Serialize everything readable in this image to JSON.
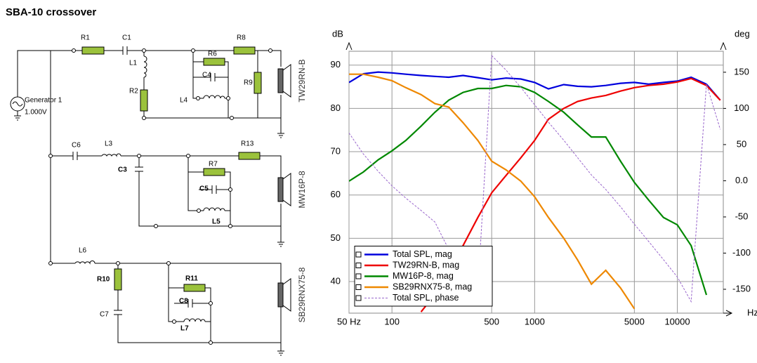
{
  "header": {
    "title": "SBA-10 crossover"
  },
  "circuit": {
    "generator": {
      "name": "Generator 1",
      "voltage": "1.000V"
    },
    "components": [
      "R1",
      "C1",
      "L1",
      "R2",
      "R6",
      "C4",
      "L4",
      "R8",
      "R9",
      "C6",
      "L3",
      "C3",
      "R7",
      "C5",
      "L5",
      "R13",
      "L6",
      "R10",
      "C7",
      "R11",
      "C8",
      "L7"
    ],
    "drivers": [
      "TW29RN-B",
      "MW16P-8",
      "SB29RNX75-8"
    ]
  },
  "chart_data": {
    "type": "line",
    "ylabel": "dB",
    "y2label": "deg",
    "xlabel": "Hz",
    "xscale": "log",
    "x": [
      50,
      63,
      80,
      100,
      125,
      160,
      200,
      250,
      315,
      400,
      500,
      630,
      800,
      1000,
      1250,
      1600,
      2000,
      2500,
      3150,
      4000,
      5000,
      6300,
      8000,
      10000,
      12500,
      16000,
      20000
    ],
    "xlim": [
      50,
      21000
    ],
    "xticks": [
      {
        "value": 50,
        "label": "50 Hz"
      },
      100,
      500,
      1000,
      5000,
      10000
    ],
    "ylim": [
      32.7,
      93.2
    ],
    "yticks": [
      40,
      50,
      60,
      70,
      80,
      90
    ],
    "y2lim": [
      -183,
      179
    ],
    "y2ticks": [
      150,
      100,
      50,
      {
        "value": 0,
        "label": "0.0"
      },
      -50,
      -100,
      -150
    ],
    "grid": true,
    "legend": "lower left",
    "series": [
      {
        "name": "Total SPL, mag",
        "color": "#0000dd",
        "values": [
          86,
          88,
          88.4,
          88.2,
          87.9,
          87.6,
          87.4,
          87.2,
          87.6,
          87.1,
          86.6,
          87,
          86.8,
          86,
          84.5,
          85.5,
          85.1,
          85,
          85.3,
          85.8,
          86,
          85.6,
          86,
          86.3,
          87.2,
          85.6,
          81.9
        ]
      },
      {
        "name": "TW29RN-B, mag",
        "color": "#ee0000",
        "values": [
          null,
          null,
          null,
          null,
          null,
          33,
          37,
          42.6,
          48.3,
          54.8,
          60.5,
          64.5,
          68.6,
          72.6,
          77.5,
          80,
          81.6,
          82.4,
          83,
          84,
          84.8,
          85.3,
          85.6,
          86.1,
          86.9,
          85.3,
          81.9
        ]
      },
      {
        "name": "MW16P-8, mag",
        "color": "#008800",
        "values": [
          63.2,
          65.3,
          68.1,
          70.2,
          72.6,
          75.9,
          79.1,
          81.9,
          83.7,
          84.6,
          84.6,
          85.3,
          85,
          83.7,
          81.6,
          79.1,
          76.2,
          73.4,
          73.4,
          67.8,
          62.9,
          58.8,
          54.8,
          53.1,
          48.3,
          36.9,
          null
        ]
      },
      {
        "name": "SB29RNX75-8, mag",
        "color": "#ee8800",
        "values": [
          87.9,
          87.9,
          87.2,
          86.4,
          84.8,
          83.2,
          81.1,
          80.3,
          76.7,
          72.6,
          67.8,
          65.8,
          63.2,
          59.6,
          54.8,
          50,
          45,
          39.4,
          42.6,
          38.5,
          33.7,
          null,
          null,
          null,
          null,
          null,
          null
        ]
      },
      {
        "name": "Total SPL, phase",
        "color": "#9966cc",
        "axis": "y2",
        "dash": true,
        "values": [
          66,
          37,
          13,
          -7,
          -24,
          -41,
          -57,
          -95,
          -115,
          -150,
          173,
          153,
          129,
          105,
          81,
          56,
          32,
          8,
          -12,
          -36,
          -60,
          -84,
          -109,
          -133,
          -167,
          134,
          71
        ]
      }
    ]
  }
}
